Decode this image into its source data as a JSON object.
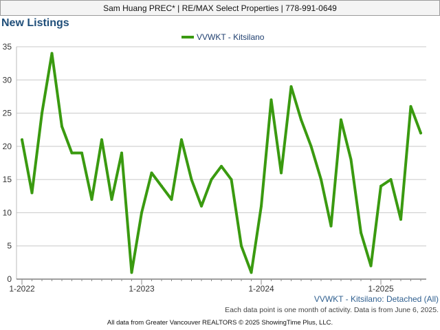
{
  "header": {
    "agent_line": "Sam Huang PREC* | RE/MAX Select Properties | 778-991-0649"
  },
  "section_title": "New Listings",
  "chart_data": {
    "type": "line",
    "x_tick_labels": [
      "1-2022",
      "1-2023",
      "1-2024",
      "1-2025"
    ],
    "ylim": [
      0,
      35
    ],
    "y_ticks": [
      0,
      5,
      10,
      15,
      20,
      25,
      30,
      35
    ],
    "grid": true,
    "legend_position": "top-center",
    "series": [
      {
        "name": "VVWKT - Kitsilano",
        "color": "#3a9a10",
        "values": [
          21,
          13,
          25,
          34,
          23,
          19,
          19,
          12,
          21,
          12,
          19,
          1,
          10,
          16,
          14,
          12,
          21,
          15,
          11,
          15,
          17,
          15,
          5,
          1,
          11,
          27,
          16,
          29,
          24,
          20,
          15,
          8,
          24,
          18,
          7,
          2,
          14,
          15,
          9,
          26,
          22
        ]
      }
    ]
  },
  "footer": {
    "series_label": "VVWKT - Kitsilano: Detached (All)",
    "note": "Each data point is one month of activity. Data is from June 6, 2025.",
    "source": "All data from Greater Vancouver REALTORS © 2025 ShowingTime Plus, LLC."
  }
}
